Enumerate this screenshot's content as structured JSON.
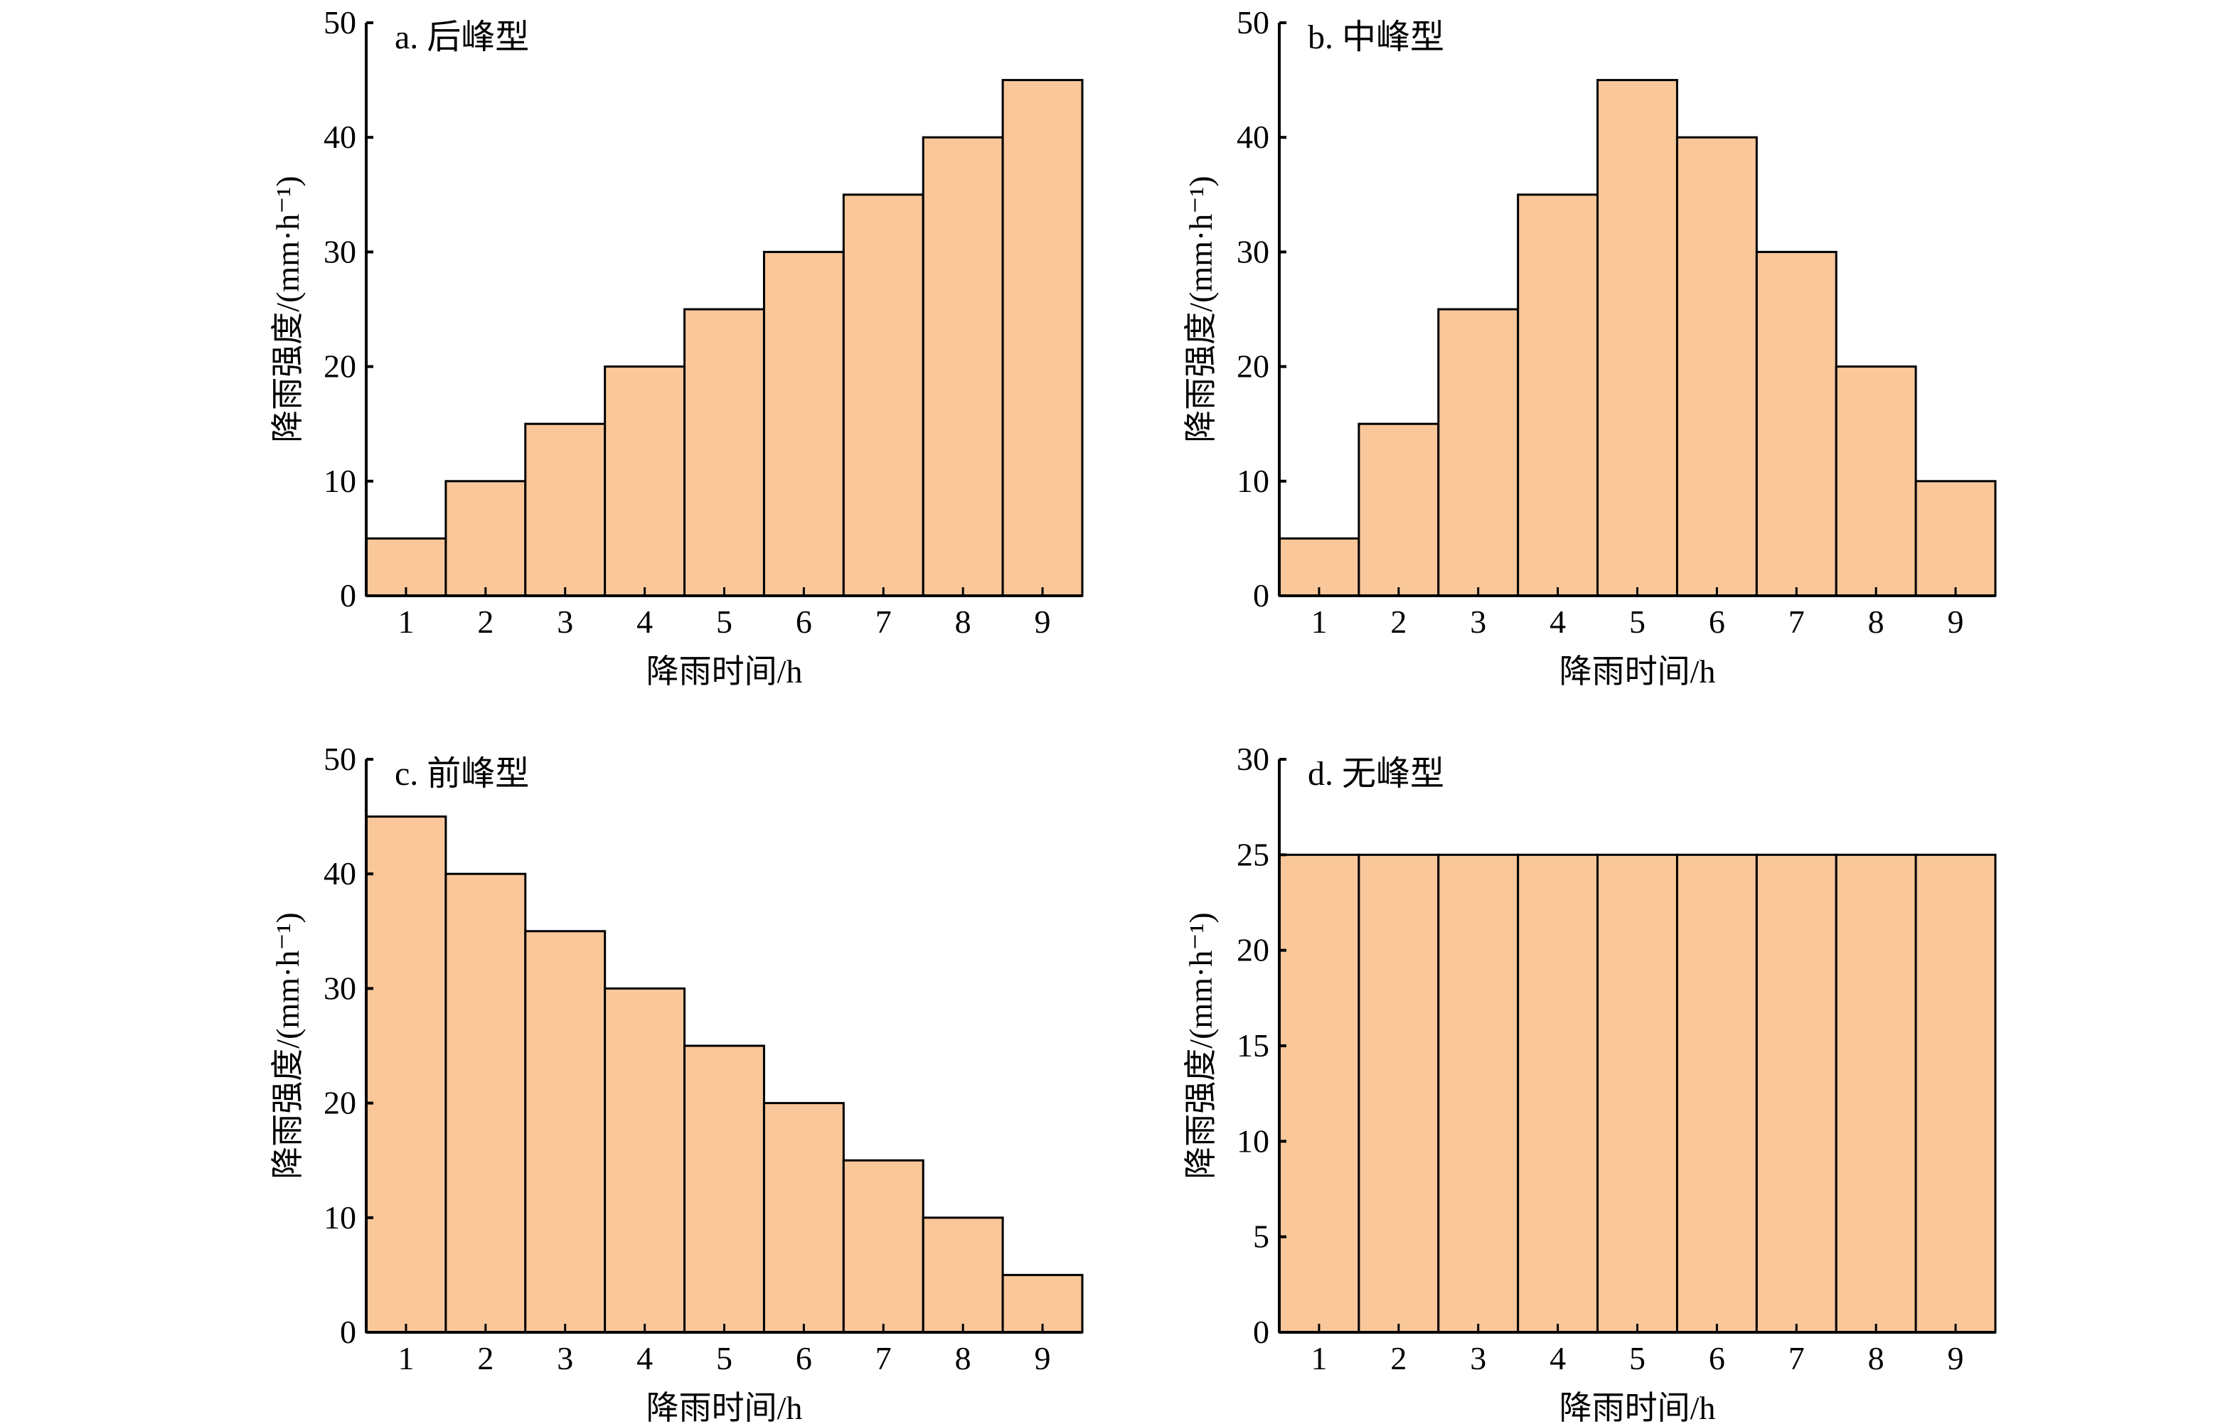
{
  "chart_data": [
    {
      "type": "bar",
      "title": "a. 后峰型",
      "categories": [
        "1",
        "2",
        "3",
        "4",
        "5",
        "6",
        "7",
        "8",
        "9"
      ],
      "values": [
        5,
        10,
        15,
        20,
        25,
        30,
        35,
        40,
        45
      ],
      "xlabel": "降雨时间/h",
      "ylabel": "降雨强度/(mm·h⁻¹)",
      "ylim": [
        0,
        50
      ],
      "yticks": [
        0,
        10,
        20,
        30,
        40,
        50
      ],
      "grid": false
    },
    {
      "type": "bar",
      "title": "b. 中峰型",
      "categories": [
        "1",
        "2",
        "3",
        "4",
        "5",
        "6",
        "7",
        "8",
        "9"
      ],
      "values": [
        5,
        15,
        25,
        35,
        45,
        40,
        30,
        20,
        10
      ],
      "xlabel": "降雨时间/h",
      "ylabel": "降雨强度/(mm·h⁻¹)",
      "ylim": [
        0,
        50
      ],
      "yticks": [
        0,
        10,
        20,
        30,
        40,
        50
      ],
      "grid": false
    },
    {
      "type": "bar",
      "title": "c. 前峰型",
      "categories": [
        "1",
        "2",
        "3",
        "4",
        "5",
        "6",
        "7",
        "8",
        "9"
      ],
      "values": [
        45,
        40,
        35,
        30,
        25,
        20,
        15,
        10,
        5
      ],
      "xlabel": "降雨时间/h",
      "ylabel": "降雨强度/(mm·h⁻¹)",
      "ylim": [
        0,
        50
      ],
      "yticks": [
        0,
        10,
        20,
        30,
        40,
        50
      ],
      "grid": false
    },
    {
      "type": "bar",
      "title": "d. 无峰型",
      "categories": [
        "1",
        "2",
        "3",
        "4",
        "5",
        "6",
        "7",
        "8",
        "9"
      ],
      "values": [
        25,
        25,
        25,
        25,
        25,
        25,
        25,
        25,
        25
      ],
      "xlabel": "降雨时间/h",
      "ylabel": "降雨强度/(mm·h⁻¹)",
      "ylim": [
        0,
        30
      ],
      "yticks": [
        0,
        5,
        10,
        15,
        20,
        25,
        30
      ],
      "grid": false
    }
  ],
  "colors": {
    "bar_fill": "#f9c799",
    "stroke": "#000000"
  }
}
